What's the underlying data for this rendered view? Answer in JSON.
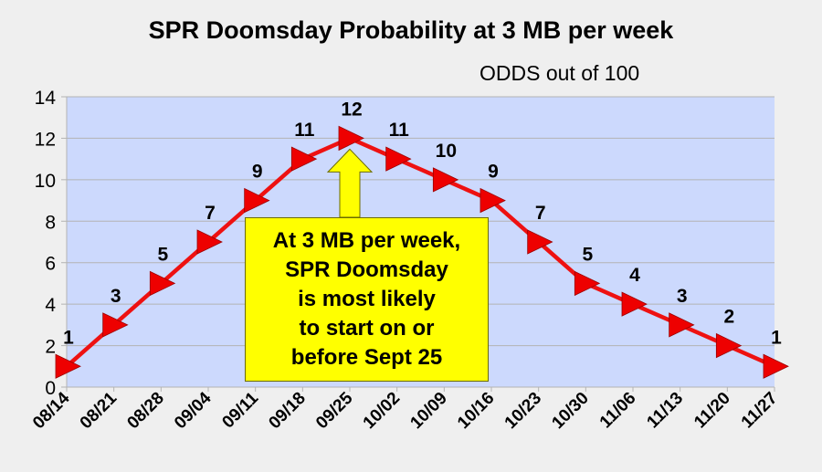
{
  "chart_data": {
    "type": "line",
    "title": "SPR Doomsday Probability at 3 MB per week",
    "subtitle": "ODDS out of 100",
    "xlabel": "",
    "ylabel": "",
    "categories": [
      "08/14",
      "08/21",
      "08/28",
      "09/04",
      "09/11",
      "09/18",
      "09/25",
      "10/02",
      "10/09",
      "10/16",
      "10/23",
      "10/30",
      "11/06",
      "11/13",
      "11/20",
      "11/27"
    ],
    "series": [
      {
        "values": [
          1,
          3,
          5,
          7,
          9,
          11,
          12,
          11,
          10,
          9,
          7,
          5,
          4,
          3,
          2,
          1
        ]
      }
    ],
    "ylim": [
      0,
      14
    ],
    "yticks": [
      0,
      2,
      4,
      6,
      8,
      10,
      12,
      14
    ],
    "grid": true,
    "data_labels": true,
    "annotation": {
      "text": "At 3 MB per week,\nSPR Doomsday\nis most likely\nto start on or\nbefore Sept 25",
      "points_to": "09/25"
    }
  },
  "colors": {
    "plot_background": "#ccd9fd",
    "series_line": "#ee1111",
    "marker": "#ee0000",
    "callout_fill": "#ffff00",
    "gridline": "#b3b3b3"
  }
}
